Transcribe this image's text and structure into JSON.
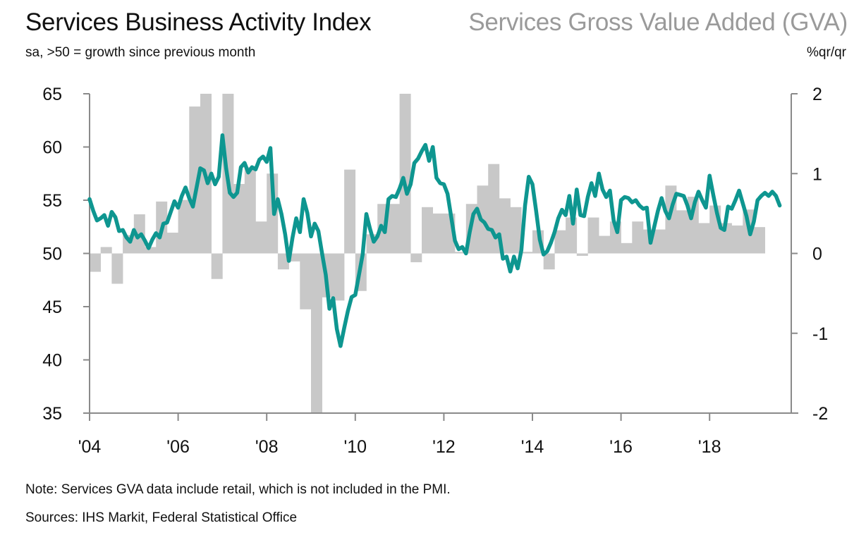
{
  "header": {
    "title_left": "Services Business Activity Index",
    "title_right": "Services Gross Value Added (GVA)",
    "subtitle_left": "sa, >50 = growth since previous month",
    "subtitle_right": "%qr/qr"
  },
  "footer": {
    "note": "Note: Services GVA data include retail, which is not included in the PMI.",
    "sources": "Sources: IHS Markit, Federal Statistical Office"
  },
  "colors": {
    "line": "#0e9690",
    "bars": "#c8c8c8",
    "axis": "#8a8a8a",
    "title_right": "#9a9a9a"
  },
  "chart_data": {
    "type": "bar+line",
    "title": "Services Business Activity Index / Services Gross Value Added (GVA)",
    "x_tick_labels": [
      "'04",
      "'06",
      "'08",
      "'10",
      "'12",
      "'14",
      "'16",
      "'18"
    ],
    "x_ticks_years": [
      2004,
      2006,
      2008,
      2010,
      2012,
      2014,
      2016,
      2018
    ],
    "x_range": [
      2004.0,
      2019.75
    ],
    "grid": false,
    "left_axis": {
      "label": "sa, >50 = growth since previous month",
      "ylim": [
        35,
        65
      ],
      "ticks": [
        35,
        40,
        45,
        50,
        55,
        60,
        65
      ]
    },
    "right_axis": {
      "label": "%qr/qr",
      "ylim": [
        -2,
        2
      ],
      "ticks": [
        -2,
        -1,
        0,
        1,
        2
      ]
    },
    "series": [
      {
        "name": "Services Business Activity Index",
        "type": "line",
        "axis": "left",
        "frequency": "monthly",
        "start": "2004-01",
        "values": [
          55.1,
          54.0,
          53.1,
          53.3,
          53.6,
          52.6,
          53.9,
          53.4,
          52.1,
          52.2,
          51.5,
          51.1,
          52.2,
          51.5,
          51.8,
          51.2,
          50.5,
          51.3,
          51.9,
          51.5,
          52.8,
          52.9,
          53.9,
          54.9,
          54.3,
          55.4,
          56.2,
          55.2,
          54.4,
          56.2,
          58.0,
          57.8,
          56.6,
          57.5,
          56.5,
          57.2,
          61.1,
          58.0,
          55.7,
          55.3,
          55.7,
          58.1,
          58.5,
          57.6,
          58.1,
          57.9,
          58.8,
          59.1,
          58.6,
          59.9,
          53.7,
          55.1,
          53.7,
          51.8,
          49.3,
          51.5,
          53.3,
          52.0,
          55.1,
          53.8,
          51.6,
          52.8,
          52.1,
          50.0,
          48.0,
          44.8,
          45.8,
          42.9,
          41.3,
          43.0,
          44.6,
          45.9,
          46.1,
          48.0,
          49.9,
          53.7,
          52.3,
          51.1,
          51.6,
          52.6,
          52.0,
          55.1,
          55.4,
          55.3,
          56.1,
          57.1,
          55.6,
          56.5,
          58.5,
          58.9,
          59.6,
          60.2,
          58.7,
          60.0,
          57.1,
          56.6,
          56.5,
          55.6,
          53.4,
          51.2,
          50.4,
          50.6,
          50.0,
          52.0,
          53.7,
          54.2,
          53.2,
          52.9,
          52.3,
          52.2,
          51.5,
          51.8,
          49.5,
          49.7,
          48.3,
          49.7,
          48.6,
          50.3,
          54.5,
          57.2,
          56.5,
          54.0,
          51.3,
          49.9,
          50.2,
          51.0,
          52.0,
          53.3,
          54.1,
          53.6,
          55.4,
          52.8,
          56.0,
          53.6,
          53.5,
          55.3,
          56.6,
          55.4,
          57.5,
          56.0,
          55.3,
          55.9,
          53.1,
          52.0,
          55.0,
          55.3,
          55.2,
          54.8,
          55.0,
          54.5,
          54.2,
          54.3,
          51.0,
          52.5,
          54.0,
          55.2,
          54.0,
          53.3,
          54.6,
          55.6,
          55.5,
          55.4,
          54.5,
          53.3,
          54.8,
          55.8,
          55.0,
          54.3,
          57.3,
          55.5,
          53.8,
          52.4,
          52.2,
          54.4,
          54.2,
          55.0,
          55.9,
          54.7,
          53.5,
          51.8,
          53.0,
          55.0,
          55.4,
          55.7,
          55.4,
          55.8,
          55.4,
          54.5
        ]
      },
      {
        "name": "Services Gross Value Added (GVA)",
        "type": "bar",
        "axis": "right",
        "frequency": "quarterly",
        "start": "2004-Q1",
        "values": [
          -0.23,
          0.08,
          -0.38,
          0.23,
          0.49,
          0.08,
          0.65,
          0.26,
          0.67,
          1.84,
          2.0,
          -0.32,
          2.0,
          0.87,
          1.08,
          0.4,
          1.0,
          -0.2,
          -0.1,
          -0.7,
          -2.0,
          -0.55,
          -0.59,
          1.05,
          -0.47,
          0.24,
          0.62,
          0.62,
          2.0,
          -0.11,
          0.58,
          0.5,
          0.5,
          0.02,
          0.62,
          0.85,
          1.12,
          0.69,
          0.58,
          0.02,
          0.29,
          -0.2,
          0.29,
          0.45,
          -0.03,
          0.45,
          0.22,
          0.4,
          0.13,
          0.4,
          0.3,
          0.3,
          0.85,
          0.54,
          0.71,
          0.38,
          0.6,
          0.38,
          0.35,
          0.55,
          0.33
        ]
      }
    ]
  }
}
